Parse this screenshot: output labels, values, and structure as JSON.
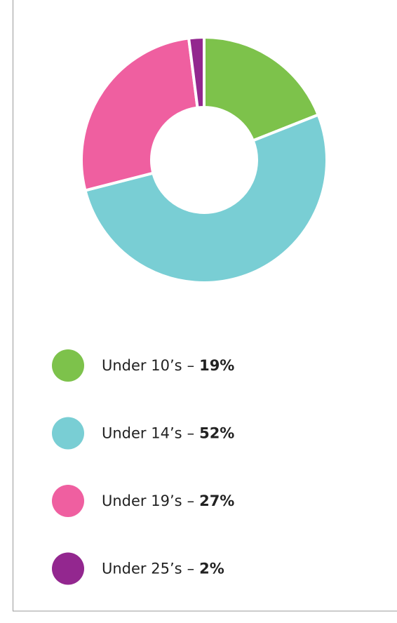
{
  "chart_data": {
    "type": "donut",
    "categories": [
      "Under 10’s",
      "Under 14’s",
      "Under 19’s",
      "Under 25’s"
    ],
    "values": [
      19,
      52,
      27,
      2
    ],
    "value_labels": [
      "19%",
      "52%",
      "27%",
      "2%"
    ],
    "separator": "–",
    "colors": [
      "#7dc24b",
      "#79ced4",
      "#ef5fa0",
      "#93278f"
    ],
    "legend": "bottom"
  }
}
